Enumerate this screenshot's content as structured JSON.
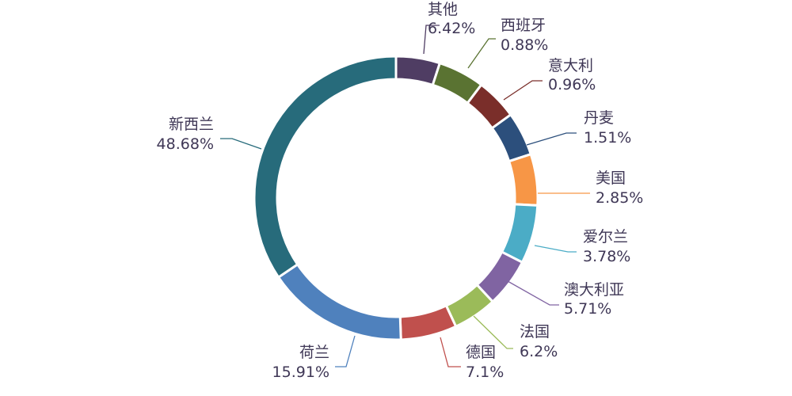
{
  "chart_data": {
    "type": "pie",
    "style": "donut",
    "slices": [
      {
        "label": "其他",
        "value_text": "6.42%",
        "value": 6.42,
        "color": "#4f3d63"
      },
      {
        "label": "西班牙",
        "value_text": "0.88%",
        "value": 0.88,
        "color": "#5a7332"
      },
      {
        "label": "意大利",
        "value_text": "0.96%",
        "value": 0.96,
        "color": "#7a2e2a"
      },
      {
        "label": "丹麦",
        "value_text": "1.51%",
        "value": 1.51,
        "color": "#2c4f7c"
      },
      {
        "label": "美国",
        "value_text": "2.85%",
        "value": 2.85,
        "color": "#f79646"
      },
      {
        "label": "爱尔兰",
        "value_text": "3.78%",
        "value": 3.78,
        "color": "#4bacc6"
      },
      {
        "label": "澳大利亚",
        "value_text": "5.71%",
        "value": 5.71,
        "color": "#8064a2"
      },
      {
        "label": "法国",
        "value_text": "6.2%",
        "value": 6.2,
        "color": "#9bbb59"
      },
      {
        "label": "德国",
        "value_text": "7.1%",
        "value": 7.1,
        "color": "#c0504d"
      },
      {
        "label": "荷兰",
        "value_text": "15.91%",
        "value": 15.91,
        "color": "#4f81bd"
      },
      {
        "label": "新西兰",
        "value_text": "48.68%",
        "value": 48.68,
        "color": "#276b7b"
      }
    ]
  }
}
